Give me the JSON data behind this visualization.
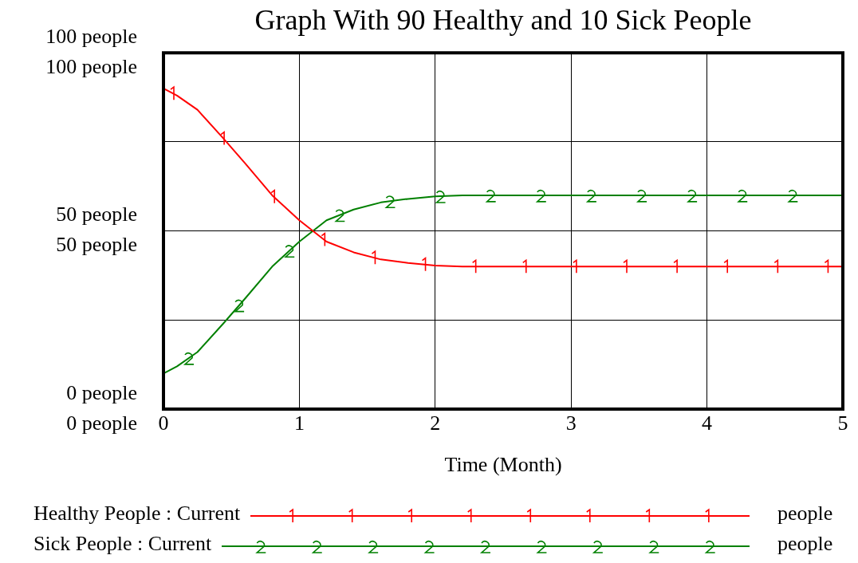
{
  "chart_data": {
    "type": "line",
    "title": "Graph With 90 Healthy and 10 Sick People",
    "xlabel": "Time (Month)",
    "xlim": [
      0,
      5
    ],
    "xticks": [
      0,
      1,
      2,
      3,
      4,
      5
    ],
    "ylim": [
      0,
      100
    ],
    "yticks": [
      {
        "value": 0,
        "label": "0 people"
      },
      {
        "value": 25,
        "label": null
      },
      {
        "value": 50,
        "label": "50 people"
      },
      {
        "value": 75,
        "label": null
      },
      {
        "value": 100,
        "label": "100 people"
      }
    ],
    "y2lim": [
      0,
      100
    ],
    "y2ticks": [
      {
        "value": 0,
        "label": "0 people"
      },
      {
        "value": 25,
        "label": null
      },
      {
        "value": 50,
        "label": "50 people"
      },
      {
        "value": 75,
        "label": null
      },
      {
        "value": 100,
        "label": "100 people"
      }
    ],
    "grid": true,
    "legend": "bottom",
    "annotations": [
      "people",
      "people"
    ],
    "series": [
      {
        "name": "Healthy People : Current",
        "color": "#ff0000",
        "x": [
          0,
          0.1,
          0.25,
          0.44,
          0.6,
          0.8,
          1.0,
          1.2,
          1.4,
          1.6,
          1.8,
          2.0,
          2.2,
          5
        ],
        "values": [
          90,
          88,
          84,
          76,
          69,
          60,
          53,
          47,
          44,
          42,
          41,
          40.3,
          40,
          40
        ]
      },
      {
        "name": "Sick People : Current",
        "color": "#008000",
        "axis": "y2",
        "x": [
          0,
          0.1,
          0.25,
          0.44,
          0.6,
          0.8,
          1.0,
          1.2,
          1.4,
          1.6,
          1.8,
          2.0,
          2.2,
          5
        ],
        "values": [
          10,
          12,
          16,
          24,
          31,
          40,
          47,
          53,
          56,
          58,
          59,
          59.7,
          60,
          60
        ]
      }
    ]
  }
}
